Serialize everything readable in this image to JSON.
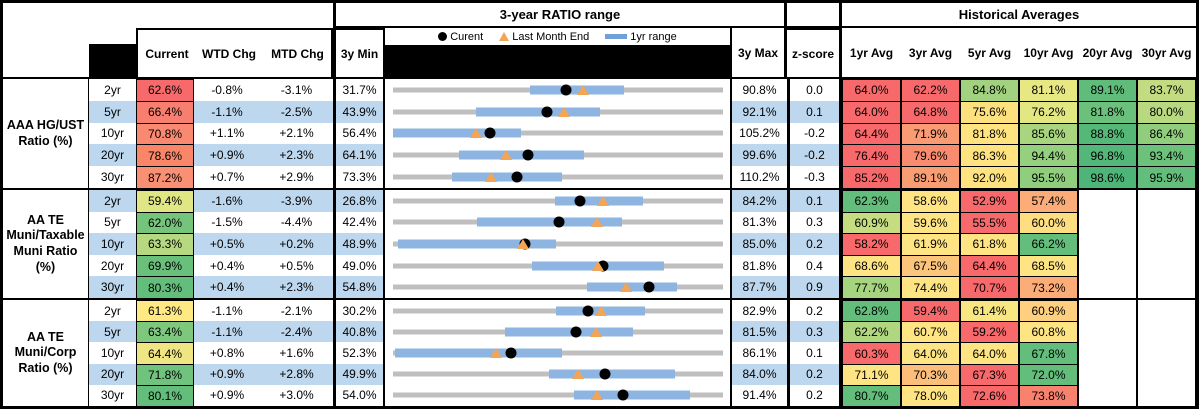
{
  "header": {
    "range_title": "3-year RATIO range",
    "averages_title": "Historical Averages",
    "col_current": "Current",
    "col_wtd": "WTD Chg",
    "col_mtd": "MTD Chg",
    "col_min": "3y Min",
    "col_max": "3y Max",
    "col_z": "z-score",
    "avg_cols": [
      "1yr Avg",
      "3yr Avg",
      "5yr Avg",
      "10yr Avg",
      "20yr Avg",
      "30yr Avg"
    ],
    "legend": {
      "current": "Curent",
      "last_month": "Last Month End",
      "range": "1yr range"
    }
  },
  "colors": {
    "stripe_blue": "#BDD7EE",
    "range_bar_blue": "#8EB4E1",
    "legend_bar_blue": "#6FA0D8",
    "track_gray": "#BFBFBF",
    "triangle_orange": "#F4A455",
    "heat_red": "#F8696B",
    "heat_yellow": "#FEE482",
    "heat_green": "#63BE7B"
  },
  "chart_data": {
    "type": "table",
    "note": "Embedded per-row range charts: gray track spans 3y Min..3y Max; blue bar = 1yr range; black dot = Current; orange triangle = Last Month End.",
    "groups": [
      {
        "label": "AAA HG/UST\nRatio (%)",
        "rows": [
          {
            "tenor": "2yr",
            "current": "62.6%",
            "current_bg": "#F8696B",
            "wtd": "-0.8%",
            "mtd": "-3.1%",
            "min": "31.7%",
            "max": "90.8%",
            "z": "0.0",
            "chart": {
              "min": 31.7,
              "max": 90.8,
              "bar_lo": 56.3,
              "bar_hi": 73.1,
              "dot": 62.6,
              "tri": 65.7
            },
            "avgs": [
              {
                "v": "64.0%",
                "bg": "#F8696B"
              },
              {
                "v": "62.2%",
                "bg": "#F8696B"
              },
              {
                "v": "84.8%",
                "bg": "#A2D27F"
              },
              {
                "v": "81.1%",
                "bg": "#E8E882"
              },
              {
                "v": "89.1%",
                "bg": "#5FBC7A"
              },
              {
                "v": "83.7%",
                "bg": "#C3DC81"
              }
            ]
          },
          {
            "tenor": "5yr",
            "current": "66.4%",
            "current_bg": "#F87E70",
            "wtd": "-1.1%",
            "mtd": "-2.5%",
            "min": "43.9%",
            "max": "92.1%",
            "z": "0.1",
            "chart": {
              "min": 43.9,
              "max": 92.1,
              "bar_lo": 56.0,
              "bar_hi": 74.1,
              "dot": 66.4,
              "tri": 68.9
            },
            "avgs": [
              {
                "v": "64.0%",
                "bg": "#F8696B"
              },
              {
                "v": "64.8%",
                "bg": "#F8696B"
              },
              {
                "v": "75.6%",
                "bg": "#FEE17F"
              },
              {
                "v": "76.2%",
                "bg": "#E3E782"
              },
              {
                "v": "81.8%",
                "bg": "#6BC17B"
              },
              {
                "v": "80.0%",
                "bg": "#B9D980"
              }
            ]
          },
          {
            "tenor": "10yr",
            "current": "70.8%",
            "current_bg": "#F98970",
            "wtd": "+1.1%",
            "mtd": "+2.1%",
            "min": "56.4%",
            "max": "105.2%",
            "z": "-0.2",
            "chart": {
              "min": 56.4,
              "max": 105.2,
              "bar_lo": 56.4,
              "bar_hi": 75.4,
              "dot": 70.8,
              "tri": 68.7
            },
            "avgs": [
              {
                "v": "64.4%",
                "bg": "#F8696B"
              },
              {
                "v": "71.9%",
                "bg": "#FA9B73"
              },
              {
                "v": "81.8%",
                "bg": "#FEE380"
              },
              {
                "v": "85.6%",
                "bg": "#A9D57F"
              },
              {
                "v": "88.8%",
                "bg": "#55B878"
              },
              {
                "v": "86.4%",
                "bg": "#90CE7E"
              }
            ]
          },
          {
            "tenor": "20yr",
            "current": "78.6%",
            "current_bg": "#F98668",
            "wtd": "+0.9%",
            "mtd": "+2.3%",
            "min": "64.1%",
            "max": "99.6%",
            "z": "-0.2",
            "chart": {
              "min": 64.1,
              "max": 99.6,
              "bar_lo": 71.2,
              "bar_hi": 84.7,
              "dot": 78.6,
              "tri": 76.3
            },
            "avgs": [
              {
                "v": "76.4%",
                "bg": "#F8696B"
              },
              {
                "v": "79.6%",
                "bg": "#F98B6F"
              },
              {
                "v": "86.3%",
                "bg": "#FEE380"
              },
              {
                "v": "94.4%",
                "bg": "#95D07E"
              },
              {
                "v": "96.8%",
                "bg": "#52B778"
              },
              {
                "v": "93.4%",
                "bg": "#6CC27B"
              }
            ]
          },
          {
            "tenor": "30yr",
            "current": "87.2%",
            "current_bg": "#F98F73",
            "wtd": "+0.7%",
            "mtd": "+2.9%",
            "min": "73.3%",
            "max": "110.2%",
            "z": "-0.3",
            "chart": {
              "min": 73.3,
              "max": 110.2,
              "bar_lo": 79.9,
              "bar_hi": 92.2,
              "dot": 87.2,
              "tri": 84.3
            },
            "avgs": [
              {
                "v": "85.2%",
                "bg": "#F8696B"
              },
              {
                "v": "89.1%",
                "bg": "#F99D72"
              },
              {
                "v": "92.0%",
                "bg": "#FEE380"
              },
              {
                "v": "95.5%",
                "bg": "#8FCE7D"
              },
              {
                "v": "98.6%",
                "bg": "#4EB578"
              },
              {
                "v": "95.9%",
                "bg": "#63BE7B"
              }
            ]
          }
        ]
      },
      {
        "label": "AA TE\nMuni/Taxable\nMuni Ratio\n(%)",
        "rows": [
          {
            "tenor": "2yr",
            "current": "59.4%",
            "current_bg": "#E0E683",
            "wtd": "-1.6%",
            "mtd": "-3.9%",
            "min": "26.8%",
            "max": "84.2%",
            "z": "0.1",
            "chart": {
              "min": 26.8,
              "max": 84.2,
              "bar_lo": 55.0,
              "bar_hi": 70.3,
              "dot": 59.4,
              "tri": 63.3
            },
            "avgs": [
              {
                "v": "62.3%",
                "bg": "#63BE7B"
              },
              {
                "v": "58.6%",
                "bg": "#FEE482"
              },
              {
                "v": "52.9%",
                "bg": "#F8696B"
              },
              {
                "v": "57.4%",
                "bg": "#FBAC77"
              },
              null,
              null
            ]
          },
          {
            "tenor": "5yr",
            "current": "62.0%",
            "current_bg": "#74C47C",
            "wtd": "-1.5%",
            "mtd": "-4.4%",
            "min": "42.4%",
            "max": "81.3%",
            "z": "0.3",
            "chart": {
              "min": 42.4,
              "max": 81.3,
              "bar_lo": 52.3,
              "bar_hi": 69.4,
              "dot": 62.0,
              "tri": 66.4
            },
            "avgs": [
              {
                "v": "60.9%",
                "bg": "#C6DC81"
              },
              {
                "v": "59.6%",
                "bg": "#FEE482"
              },
              {
                "v": "55.5%",
                "bg": "#F8696B"
              },
              {
                "v": "60.0%",
                "bg": "#FEDE80"
              },
              null,
              null
            ]
          },
          {
            "tenor": "10yr",
            "current": "63.3%",
            "current_bg": "#B5D880",
            "wtd": "+0.5%",
            "mtd": "+0.2%",
            "min": "48.9%",
            "max": "85.0%",
            "z": "0.2",
            "chart": {
              "min": 48.9,
              "max": 85.0,
              "bar_lo": 49.4,
              "bar_hi": 66.7,
              "dot": 63.3,
              "tri": 63.1
            },
            "avgs": [
              {
                "v": "58.2%",
                "bg": "#F8696B"
              },
              {
                "v": "61.9%",
                "bg": "#FEE482"
              },
              {
                "v": "61.8%",
                "bg": "#FEE482"
              },
              {
                "v": "66.2%",
                "bg": "#63BE7B"
              },
              null,
              null
            ]
          },
          {
            "tenor": "20yr",
            "current": "69.9%",
            "current_bg": "#68C07B",
            "wtd": "+0.4%",
            "mtd": "+0.5%",
            "min": "49.0%",
            "max": "81.8%",
            "z": "0.4",
            "chart": {
              "min": 49.0,
              "max": 81.8,
              "bar_lo": 62.8,
              "bar_hi": 75.9,
              "dot": 69.9,
              "tri": 69.4
            },
            "avgs": [
              {
                "v": "68.6%",
                "bg": "#FEE482"
              },
              {
                "v": "67.5%",
                "bg": "#FCC57C"
              },
              {
                "v": "64.4%",
                "bg": "#F8696B"
              },
              {
                "v": "68.5%",
                "bg": "#FEE482"
              },
              null,
              null
            ]
          },
          {
            "tenor": "30yr",
            "current": "80.3%",
            "current_bg": "#63BE7B",
            "wtd": "+0.4%",
            "mtd": "+2.3%",
            "min": "54.8%",
            "max": "87.7%",
            "z": "0.9",
            "chart": {
              "min": 54.8,
              "max": 87.7,
              "bar_lo": 74.1,
              "bar_hi": 83.1,
              "dot": 80.3,
              "tri": 78.0
            },
            "avgs": [
              {
                "v": "77.7%",
                "bg": "#A6D47F"
              },
              {
                "v": "74.4%",
                "bg": "#FEE482"
              },
              {
                "v": "70.7%",
                "bg": "#F8696B"
              },
              {
                "v": "73.2%",
                "bg": "#FBAC77"
              },
              null,
              null
            ]
          }
        ]
      },
      {
        "label": "AA TE\nMuni/Corp\nRatio (%)",
        "rows": [
          {
            "tenor": "2yr",
            "current": "61.3%",
            "current_bg": "#FFE983",
            "wtd": "-1.1%",
            "mtd": "-2.1%",
            "min": "30.2%",
            "max": "82.9%",
            "z": "0.2",
            "chart": {
              "min": 30.2,
              "max": 82.9,
              "bar_lo": 56.3,
              "bar_hi": 70.5,
              "dot": 61.3,
              "tri": 63.4
            },
            "avgs": [
              {
                "v": "62.8%",
                "bg": "#63BE7B"
              },
              {
                "v": "59.4%",
                "bg": "#F8696B"
              },
              {
                "v": "61.4%",
                "bg": "#F8E683"
              },
              {
                "v": "60.9%",
                "bg": "#FDCF7E"
              },
              null,
              null
            ]
          },
          {
            "tenor": "5yr",
            "current": "63.4%",
            "current_bg": "#7EC87E",
            "wtd": "-1.1%",
            "mtd": "-2.4%",
            "min": "40.8%",
            "max": "81.5%",
            "z": "0.3",
            "chart": {
              "min": 40.8,
              "max": 81.5,
              "bar_lo": 54.6,
              "bar_hi": 70.4,
              "dot": 63.4,
              "tri": 65.8
            },
            "avgs": [
              {
                "v": "62.2%",
                "bg": "#B0D67F"
              },
              {
                "v": "60.7%",
                "bg": "#FEE482"
              },
              {
                "v": "59.2%",
                "bg": "#F8696B"
              },
              {
                "v": "60.8%",
                "bg": "#FEE482"
              },
              null,
              null
            ]
          },
          {
            "tenor": "10yr",
            "current": "64.4%",
            "current_bg": "#EFE683",
            "wtd": "+0.8%",
            "mtd": "+1.6%",
            "min": "52.3%",
            "max": "86.1%",
            "z": "0.1",
            "chart": {
              "min": 52.3,
              "max": 86.1,
              "bar_lo": 52.5,
              "bar_hi": 69.6,
              "dot": 64.4,
              "tri": 62.8
            },
            "avgs": [
              {
                "v": "60.3%",
                "bg": "#F8696B"
              },
              {
                "v": "64.0%",
                "bg": "#FEE482"
              },
              {
                "v": "64.0%",
                "bg": "#FEE482"
              },
              {
                "v": "67.8%",
                "bg": "#63BE7B"
              },
              null,
              null
            ]
          },
          {
            "tenor": "20yr",
            "current": "71.8%",
            "current_bg": "#6FC37C",
            "wtd": "+0.9%",
            "mtd": "+2.8%",
            "min": "49.9%",
            "max": "84.0%",
            "z": "0.2",
            "chart": {
              "min": 49.9,
              "max": 84.0,
              "bar_lo": 66.0,
              "bar_hi": 79.0,
              "dot": 71.8,
              "tri": 69.0
            },
            "avgs": [
              {
                "v": "71.1%",
                "bg": "#FEE482"
              },
              {
                "v": "70.3%",
                "bg": "#FCBE7B"
              },
              {
                "v": "67.3%",
                "bg": "#F8696B"
              },
              {
                "v": "72.0%",
                "bg": "#63BE7B"
              },
              null,
              null
            ]
          },
          {
            "tenor": "30yr",
            "current": "80.1%",
            "current_bg": "#63BE7B",
            "wtd": "+0.9%",
            "mtd": "+3.0%",
            "min": "54.0%",
            "max": "91.4%",
            "z": "0.2",
            "chart": {
              "min": 54.0,
              "max": 91.4,
              "bar_lo": 74.5,
              "bar_hi": 87.7,
              "dot": 80.1,
              "tri": 77.1
            },
            "avgs": [
              {
                "v": "80.7%",
                "bg": "#63BE7B"
              },
              {
                "v": "78.0%",
                "bg": "#FEE482"
              },
              {
                "v": "72.6%",
                "bg": "#F8696B"
              },
              {
                "v": "73.8%",
                "bg": "#F9826E"
              },
              null,
              null
            ]
          }
        ]
      }
    ]
  }
}
